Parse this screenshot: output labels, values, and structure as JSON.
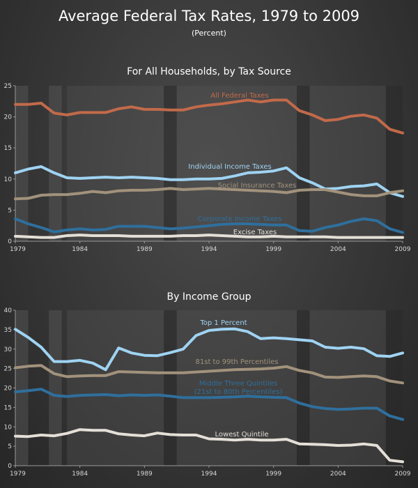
{
  "header": {
    "title": "Average Federal Tax Rates, 1979 to 2009",
    "subtitle": "(Percent)"
  },
  "colors": {
    "all_federal": "#c26a4a",
    "individual": "#9fd3f2",
    "social": "#a2927c",
    "corporate": "#2f6f9c",
    "excise": "#e4dfd7",
    "top1": "#9fd3f2",
    "p81_99": "#a2927c",
    "middle3": "#2f6f9c",
    "lowest": "#e4dfd7",
    "recession_band": "#2a2a2a",
    "stripe": "#5a5a5a"
  },
  "chart_data": [
    {
      "type": "line",
      "title": "For All Households, by Tax Source",
      "xlim": [
        1979,
        2009
      ],
      "ylim": [
        0,
        25
      ],
      "y_ticks": [
        0,
        5,
        10,
        15,
        20,
        25
      ],
      "x_tick_labels": [
        "1979",
        "1984",
        "1989",
        "1994",
        "1999",
        "2004",
        "2009"
      ],
      "x": [
        1979,
        1980,
        1981,
        1982,
        1983,
        1984,
        1985,
        1986,
        1987,
        1988,
        1989,
        1990,
        1991,
        1992,
        1993,
        1994,
        1995,
        1996,
        1997,
        1998,
        1999,
        2000,
        2001,
        2002,
        2003,
        2004,
        2005,
        2006,
        2007,
        2008,
        2009
      ],
      "series": [
        {
          "key": "all_federal",
          "name": "All Federal Taxes",
          "values": [
            22.0,
            22.0,
            22.2,
            20.6,
            20.3,
            20.7,
            20.7,
            20.7,
            21.3,
            21.6,
            21.2,
            21.2,
            21.1,
            21.1,
            21.6,
            21.9,
            22.1,
            22.4,
            22.7,
            22.4,
            22.7,
            22.7,
            21.0,
            20.3,
            19.4,
            19.6,
            20.1,
            20.3,
            19.8,
            18.0,
            17.4
          ]
        },
        {
          "key": "individual",
          "name": "Individual Income Taxes",
          "values": [
            11.0,
            11.6,
            12.0,
            11.0,
            10.2,
            10.1,
            10.2,
            10.3,
            10.2,
            10.3,
            10.2,
            10.1,
            9.9,
            9.9,
            10.0,
            10.0,
            10.1,
            10.5,
            11.0,
            11.1,
            11.3,
            11.8,
            10.2,
            9.4,
            8.4,
            8.5,
            8.8,
            8.9,
            9.2,
            7.8,
            7.2
          ]
        },
        {
          "key": "social",
          "name": "Social Insurance Taxes",
          "values": [
            6.8,
            6.9,
            7.4,
            7.5,
            7.5,
            7.7,
            8.0,
            7.8,
            8.1,
            8.2,
            8.2,
            8.3,
            8.5,
            8.3,
            8.4,
            8.5,
            8.4,
            8.3,
            8.2,
            8.1,
            8.0,
            7.8,
            8.2,
            8.3,
            8.3,
            7.9,
            7.5,
            7.3,
            7.3,
            7.8,
            8.1
          ]
        },
        {
          "key": "corporate",
          "name": "Corporate Income Taxes",
          "values": [
            3.6,
            2.8,
            2.2,
            1.5,
            1.8,
            2.0,
            1.8,
            1.9,
            2.4,
            2.4,
            2.4,
            2.2,
            2.0,
            2.1,
            2.3,
            2.5,
            2.7,
            2.8,
            2.8,
            2.7,
            2.6,
            2.6,
            1.7,
            1.6,
            2.2,
            2.6,
            3.2,
            3.6,
            3.3,
            2.0,
            1.4
          ]
        },
        {
          "key": "excise",
          "name": "Excise Taxes",
          "values": [
            0.8,
            0.7,
            0.6,
            0.6,
            0.9,
            1.0,
            0.9,
            0.9,
            0.9,
            0.8,
            0.8,
            0.8,
            0.8,
            0.9,
            0.9,
            1.0,
            0.9,
            0.8,
            0.7,
            0.7,
            0.8,
            0.7,
            0.7,
            0.7,
            0.7,
            0.6,
            0.6,
            0.6,
            0.6,
            0.6,
            0.6
          ]
        }
      ]
    },
    {
      "type": "line",
      "title": "By Income Group",
      "xlim": [
        1979,
        2009
      ],
      "ylim": [
        0,
        40
      ],
      "y_ticks": [
        0,
        5,
        10,
        15,
        20,
        25,
        30,
        35,
        40
      ],
      "x_tick_labels": [
        "1979",
        "1984",
        "1989",
        "1994",
        "1999",
        "2004",
        "2009"
      ],
      "x": [
        1979,
        1980,
        1981,
        1982,
        1983,
        1984,
        1985,
        1986,
        1987,
        1988,
        1989,
        1990,
        1991,
        1992,
        1993,
        1994,
        1995,
        1996,
        1997,
        1998,
        1999,
        2000,
        2001,
        2002,
        2003,
        2004,
        2005,
        2006,
        2007,
        2008,
        2009
      ],
      "series": [
        {
          "key": "top1",
          "name": "Top 1 Percent",
          "values": [
            35.1,
            33.0,
            30.5,
            26.8,
            26.8,
            27.1,
            26.4,
            24.7,
            30.3,
            29.0,
            28.4,
            28.3,
            29.1,
            30.0,
            33.5,
            34.8,
            35.1,
            35.2,
            34.5,
            32.7,
            32.9,
            32.7,
            32.4,
            32.1,
            30.5,
            30.2,
            30.5,
            30.1,
            28.3,
            28.1,
            29.0
          ]
        },
        {
          "key": "p81_99",
          "name": "81st to 99th Percentiles",
          "values": [
            25.2,
            25.6,
            25.8,
            23.7,
            22.9,
            23.1,
            23.2,
            23.2,
            24.2,
            24.1,
            24.0,
            23.9,
            23.9,
            23.9,
            24.1,
            24.3,
            24.5,
            24.7,
            24.8,
            24.9,
            25.1,
            25.5,
            24.5,
            23.9,
            22.8,
            22.7,
            22.9,
            23.1,
            22.9,
            21.8,
            21.3
          ]
        },
        {
          "key": "middle3",
          "name": "Middle Three Quintiles",
          "name_line2": "(21st to 80th Percentiles)",
          "values": [
            19.0,
            19.3,
            19.7,
            18.1,
            17.8,
            18.1,
            18.2,
            18.3,
            18.0,
            18.2,
            18.1,
            18.2,
            17.9,
            17.5,
            17.5,
            17.5,
            17.6,
            17.7,
            17.9,
            17.7,
            17.6,
            17.5,
            16.1,
            15.2,
            14.7,
            14.5,
            14.6,
            14.8,
            14.8,
            12.8,
            11.9
          ]
        },
        {
          "key": "lowest",
          "name": "Lowest Quintile",
          "values": [
            7.6,
            7.5,
            7.9,
            7.7,
            8.3,
            9.3,
            9.1,
            9.1,
            8.2,
            7.9,
            7.7,
            8.4,
            8.0,
            7.9,
            7.9,
            6.9,
            6.8,
            6.6,
            6.8,
            6.6,
            6.6,
            6.8,
            5.6,
            5.5,
            5.4,
            5.2,
            5.3,
            5.6,
            5.2,
            1.4,
            1.0
          ]
        }
      ]
    }
  ]
}
